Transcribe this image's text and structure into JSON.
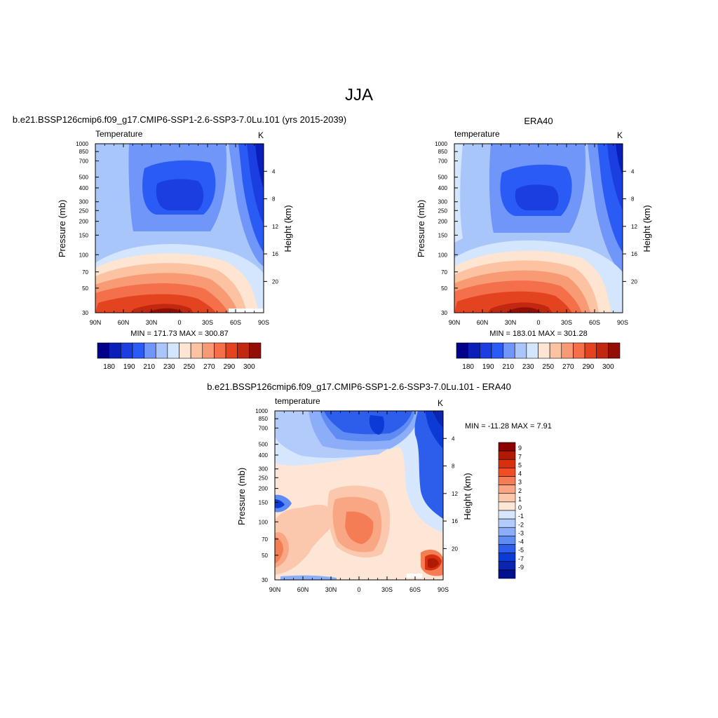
{
  "page": {
    "title": "JJA"
  },
  "chart_data": [
    {
      "type": "heatmap",
      "title": "b.e21.BSSP126cmip6.f09_g17.CMIP6-SSP1-2.6-SSP3-7.0Lu.101 (yrs 2015-2039)",
      "left_label": "Temperature",
      "right_label": "K",
      "xlabel": "",
      "ylabel": "Pressure (mb)",
      "y2label": "Height (km)",
      "x_ticks": [
        "90N",
        "60N",
        "30N",
        "0",
        "30S",
        "60S",
        "90S"
      ],
      "y_ticks": [
        "30",
        "50",
        "70",
        "100",
        "150",
        "200",
        "250",
        "300",
        "400",
        "500",
        "700",
        "850",
        "1000"
      ],
      "y2_ticks": [
        "20",
        "16",
        "12",
        "8",
        "4"
      ],
      "xlim": [
        90,
        -90
      ],
      "ylim": [
        1000,
        30
      ],
      "stats": "MIN = 171.73  MAX = 300.87",
      "colorbar_labels": [
        "180",
        "190",
        "210",
        "230",
        "250",
        "270",
        "290",
        "300"
      ]
    },
    {
      "type": "heatmap",
      "title": "ERA40",
      "left_label": "temperature",
      "right_label": "K",
      "xlabel": "",
      "ylabel": "Pressure (mb)",
      "y2label": "Height (km)",
      "x_ticks": [
        "90N",
        "60N",
        "30N",
        "0",
        "30S",
        "60S",
        "90S"
      ],
      "y_ticks": [
        "30",
        "50",
        "70",
        "100",
        "150",
        "200",
        "250",
        "300",
        "400",
        "500",
        "700",
        "850",
        "1000"
      ],
      "y2_ticks": [
        "20",
        "16",
        "12",
        "8",
        "4"
      ],
      "xlim": [
        90,
        -90
      ],
      "ylim": [
        1000,
        30
      ],
      "stats": "MIN = 183.01  MAX = 301.28",
      "colorbar_labels": [
        "180",
        "190",
        "210",
        "230",
        "250",
        "270",
        "290",
        "300"
      ]
    },
    {
      "type": "heatmap",
      "title": "b.e21.BSSP126cmip6.f09_g17.CMIP6-SSP1-2.6-SSP3-7.0Lu.101 - ERA40",
      "left_label": "temperature",
      "right_label": "K",
      "xlabel": "",
      "ylabel": "Pressure (mb)",
      "y2label": "Height (km)",
      "x_ticks": [
        "90N",
        "60N",
        "30N",
        "0",
        "30S",
        "60S",
        "90S"
      ],
      "y_ticks": [
        "30",
        "50",
        "70",
        "100",
        "150",
        "200",
        "250",
        "300",
        "400",
        "500",
        "700",
        "850",
        "1000"
      ],
      "y2_ticks": [
        "20",
        "16",
        "12",
        "8",
        "4"
      ],
      "xlim": [
        90,
        -90
      ],
      "ylim": [
        1000,
        30
      ],
      "stats": "MIN = -11.28  MAX =   7.91",
      "colorbar_labels": [
        "9",
        "7",
        "5",
        "4",
        "3",
        "2",
        "1",
        "0",
        "-1",
        "-2",
        "-3",
        "-4",
        "-5",
        "-7",
        "-9"
      ]
    }
  ],
  "colors": {
    "abs_scale": [
      "#00008b",
      "#0a1fb8",
      "#1b3ee0",
      "#2a5cf5",
      "#6f96f8",
      "#a9c6fb",
      "#d4e6fd",
      "#fde5d2",
      "#fcc3a3",
      "#f89b74",
      "#f3704a",
      "#e4431f",
      "#c22710",
      "#930e05"
    ],
    "diff_scale": [
      "#8b0000",
      "#b01a05",
      "#d7300f",
      "#f04d22",
      "#f57d55",
      "#f9a684",
      "#fcc8ad",
      "#fde6d6",
      "#d6e6fd",
      "#b2cbfb",
      "#8caef8",
      "#5f8cf3",
      "#2c5eeb",
      "#0b3bd4",
      "#0a25b0",
      "#00108e"
    ]
  }
}
